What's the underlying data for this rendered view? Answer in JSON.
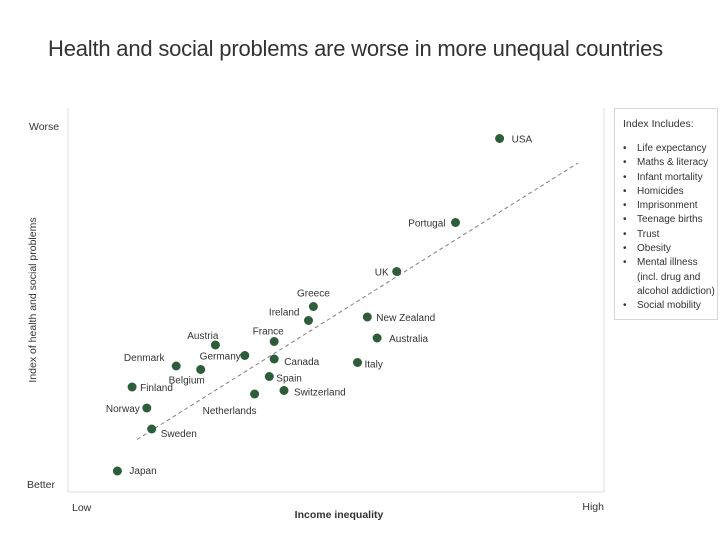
{
  "chart_data": {
    "type": "scatter",
    "title": "Health and social problems are worse in more unequal countries",
    "xlabel": "Income inequality",
    "ylabel": "Index of health and social problems",
    "x_tick_labels": [
      "Low",
      "High"
    ],
    "y_tick_labels": [
      "Better",
      "Worse"
    ],
    "xlim": [
      0,
      100
    ],
    "ylim": [
      0,
      100
    ],
    "grid": false,
    "trendline": {
      "type": "linear",
      "start": [
        10,
        11
      ],
      "end": [
        100,
        90
      ]
    },
    "points": [
      {
        "label": "USA",
        "x": 84,
        "y": 97
      },
      {
        "label": "Portugal",
        "x": 75,
        "y": 73
      },
      {
        "label": "UK",
        "x": 63,
        "y": 59
      },
      {
        "label": "Greece",
        "x": 46,
        "y": 49
      },
      {
        "label": "Ireland",
        "x": 45,
        "y": 45
      },
      {
        "label": "New Zealand",
        "x": 57,
        "y": 46
      },
      {
        "label": "Australia",
        "x": 59,
        "y": 40
      },
      {
        "label": "Austria",
        "x": 26,
        "y": 38
      },
      {
        "label": "France",
        "x": 38,
        "y": 39
      },
      {
        "label": "Denmark",
        "x": 18,
        "y": 32
      },
      {
        "label": "Germany",
        "x": 32,
        "y": 35
      },
      {
        "label": "Canada",
        "x": 38,
        "y": 34
      },
      {
        "label": "Italy",
        "x": 55,
        "y": 33
      },
      {
        "label": "Belgium",
        "x": 23,
        "y": 31
      },
      {
        "label": "Spain",
        "x": 37,
        "y": 29
      },
      {
        "label": "Finland",
        "x": 9,
        "y": 26
      },
      {
        "label": "Switzerland",
        "x": 40,
        "y": 25
      },
      {
        "label": "Netherlands",
        "x": 34,
        "y": 24
      },
      {
        "label": "Norway",
        "x": 12,
        "y": 20
      },
      {
        "label": "Sweden",
        "x": 13,
        "y": 14
      },
      {
        "label": "Japan",
        "x": 6,
        "y": 2
      }
    ]
  },
  "legend": {
    "title": "Index Includes:",
    "bullet": "•",
    "items": [
      "Life expectancy",
      "Maths & literacy",
      "Infant mortality",
      "Homicides",
      "Imprisonment",
      "Teenage births",
      "Trust",
      "Obesity",
      "Mental illness",
      "(incl. drug and",
      "alcohol addiction)",
      "Social mobility"
    ],
    "continuation_items": [
      9,
      10
    ]
  },
  "colors": {
    "point": "#2e5d3a",
    "trendline": "#808080",
    "axis": "#e2e2e2",
    "text": "#333333"
  }
}
